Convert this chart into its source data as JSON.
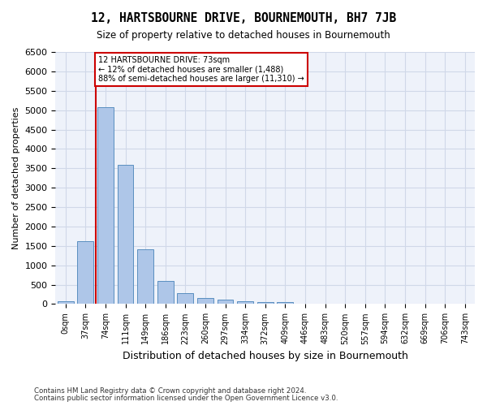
{
  "title": "12, HARTSBOURNE DRIVE, BOURNEMOUTH, BH7 7JB",
  "subtitle": "Size of property relative to detached houses in Bournemouth",
  "xlabel": "Distribution of detached houses by size in Bournemouth",
  "ylabel": "Number of detached properties",
  "footnote1": "Contains HM Land Registry data © Crown copyright and database right 2024.",
  "footnote2": "Contains public sector information licensed under the Open Government Licence v3.0.",
  "bin_labels": [
    "0sqm",
    "37sqm",
    "74sqm",
    "111sqm",
    "149sqm",
    "186sqm",
    "223sqm",
    "260sqm",
    "297sqm",
    "334sqm",
    "372sqm",
    "409sqm",
    "446sqm",
    "483sqm",
    "520sqm",
    "557sqm",
    "594sqm",
    "632sqm",
    "669sqm",
    "706sqm",
    "743sqm"
  ],
  "bar_values": [
    70,
    1630,
    5080,
    3600,
    1420,
    590,
    290,
    150,
    110,
    80,
    60,
    60,
    0,
    0,
    0,
    0,
    0,
    0,
    0,
    0,
    0
  ],
  "bar_color": "#aec6e8",
  "bar_edge_color": "#5a8fc0",
  "grid_color": "#d0d8e8",
  "background_color": "#eef2fa",
  "annotation_box_color": "#cc0000",
  "property_sqm": 73,
  "property_bin_index": 2,
  "annotation_line": "12 HARTSBOURNE DRIVE: 73sqm",
  "annotation_line2": "← 12% of detached houses are smaller (1,488)",
  "annotation_line3": "88% of semi-detached houses are larger (11,310) →",
  "ylim": [
    0,
    6500
  ],
  "yticks": [
    0,
    500,
    1000,
    1500,
    2000,
    2500,
    3000,
    3500,
    4000,
    4500,
    5000,
    5500,
    6000,
    6500
  ]
}
